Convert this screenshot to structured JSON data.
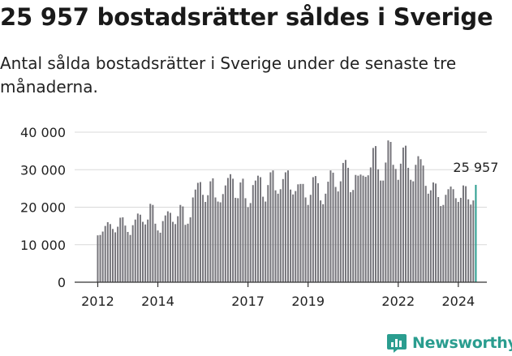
{
  "header": {
    "title": "25 957 bostadsrätter såldes i Sverige",
    "subtitle": "Antal sålda bostadsrätter i Sverige under de senaste tre månaderna."
  },
  "brand": {
    "name": "Newsworthy",
    "icon": "newsworthy-logo-icon"
  },
  "colors": {
    "bar": "#76757b",
    "highlight": "#2a9d8f",
    "grid": "#d9d9d9",
    "axis": "#333333"
  },
  "chart_data": {
    "type": "bar",
    "title": "25 957 bostadsrätter såldes i Sverige",
    "subtitle": "Antal sålda bostadsrätter i Sverige under de senaste tre månaderna.",
    "grid": "horizontal",
    "ylim": [
      0,
      40000
    ],
    "yticks": [
      {
        "value": 0,
        "label": "0"
      },
      {
        "value": 10000,
        "label": "10 000"
      },
      {
        "value": 20000,
        "label": "20 000"
      },
      {
        "value": 30000,
        "label": "30 000"
      },
      {
        "value": 40000,
        "label": "40 000"
      }
    ],
    "xlim": [
      2011.92,
      2024.45
    ],
    "xticks": [
      {
        "value": 2012,
        "label": "2012"
      },
      {
        "value": 2014,
        "label": "2014"
      },
      {
        "value": 2017,
        "label": "2017"
      },
      {
        "value": 2019,
        "label": "2019"
      },
      {
        "value": 2022,
        "label": "2022"
      },
      {
        "value": 2024,
        "label": "2024"
      }
    ],
    "x_start": 2012.0,
    "x_step": 0.08333,
    "values": [
      12500,
      12600,
      13500,
      15000,
      16000,
      15500,
      14200,
      13300,
      14800,
      17200,
      17300,
      15100,
      13400,
      12600,
      15200,
      16700,
      18300,
      18000,
      16100,
      15400,
      16700,
      20900,
      20600,
      15600,
      13800,
      13200,
      16300,
      17800,
      18900,
      18500,
      16100,
      15500,
      17600,
      20600,
      20200,
      15300,
      15600,
      17300,
      22600,
      24700,
      26500,
      26700,
      23300,
      21400,
      23200,
      26900,
      27700,
      22600,
      21500,
      21300,
      23500,
      25800,
      27800,
      28800,
      27600,
      22500,
      22400,
      26600,
      27600,
      22400,
      20000,
      21100,
      25900,
      27100,
      28400,
      28000,
      22800,
      21500,
      25900,
      29300,
      29800,
      24500,
      23600,
      24800,
      27500,
      29300,
      29800,
      24700,
      23400,
      24300,
      26100,
      26200,
      26200,
      22600,
      20600,
      23300,
      28000,
      28300,
      26400,
      21800,
      20800,
      23600,
      26800,
      29800,
      29200,
      25400,
      24200,
      26900,
      31800,
      32600,
      30500,
      24000,
      24600,
      28600,
      28400,
      28700,
      28400,
      28100,
      28500,
      30600,
      35800,
      36300,
      30100,
      27100,
      27100,
      31900,
      37800,
      37400,
      31300,
      30200,
      27300,
      31600,
      35900,
      36400,
      30500,
      27300,
      26900,
      31300,
      33600,
      32800,
      31100,
      25700,
      23600,
      24500,
      26600,
      26300,
      22700,
      20300,
      20600,
      23300,
      24800,
      25500,
      24800,
      22400,
      21400,
      22500,
      25800,
      25600,
      22100,
      20700,
      21800,
      25957
    ],
    "highlight_last": true,
    "annotation": "25 957"
  }
}
